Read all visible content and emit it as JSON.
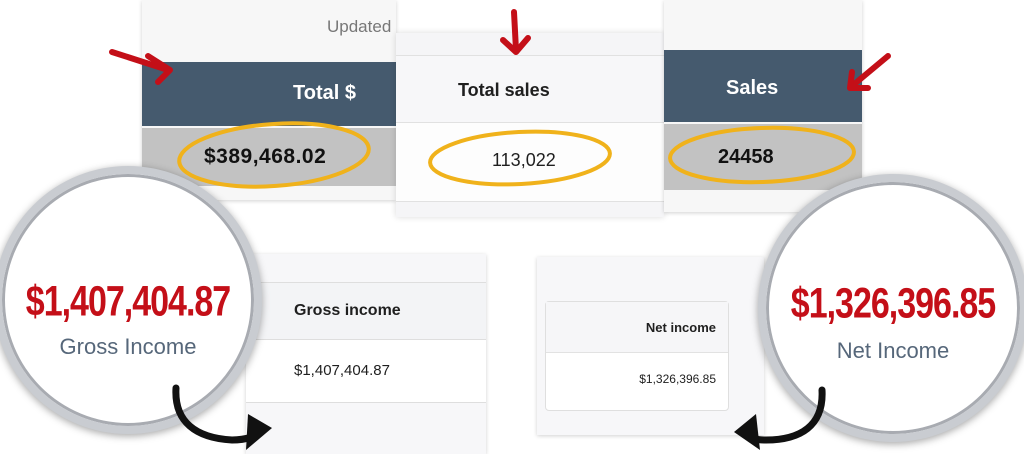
{
  "top_panels": {
    "total_dollars": {
      "updated_label": "Updated",
      "header": "Total $",
      "value": "$389,468.02"
    },
    "total_sales": {
      "header": "Total sales",
      "value": "113,022"
    },
    "sales": {
      "header": "Sales",
      "value": "24458"
    }
  },
  "bottom_panels": {
    "gross": {
      "header": "Gross income",
      "value": "$1,407,404.87"
    },
    "net": {
      "header": "Net income",
      "value": "$1,326,396.85"
    }
  },
  "callouts": {
    "gross": {
      "amount": "$1,407,404.87",
      "label": "Gross Income"
    },
    "net": {
      "amount": "$1,326,396.85",
      "label": "Net Income"
    }
  },
  "colors": {
    "table_header_blue": "#455a6e",
    "highlight_yellow": "#f0b21b",
    "arrow_red": "#c40f18",
    "callout_text_red": "#c40f18",
    "callout_label_blue": "#56677a"
  }
}
